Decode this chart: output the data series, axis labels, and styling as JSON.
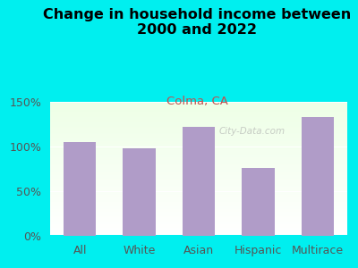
{
  "title": "Change in household income between\n2000 and 2022",
  "subtitle": "Colma, CA",
  "categories": [
    "All",
    "White",
    "Asian",
    "Hispanic",
    "Multirace"
  ],
  "values": [
    105,
    98,
    122,
    76,
    133
  ],
  "bar_color": "#b09cc8",
  "title_fontsize": 11.5,
  "subtitle_fontsize": 9.5,
  "subtitle_color": "#c05050",
  "background_color": "#00efef",
  "ylim": [
    0,
    150
  ],
  "yticks": [
    0,
    50,
    100,
    150
  ],
  "ytick_labels": [
    "0%",
    "50%",
    "100%",
    "150%"
  ],
  "watermark": "City-Data.com",
  "tick_color": "#555555",
  "xlabel_fontsize": 9,
  "ylabel_fontsize": 9
}
